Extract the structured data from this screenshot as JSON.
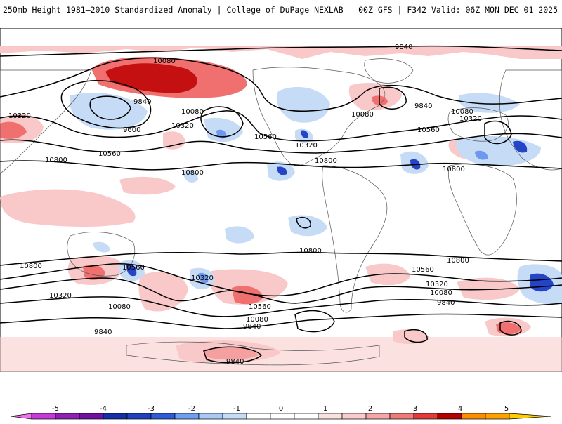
{
  "header": {
    "title_left": "250mb Height 1981–2010 Standardized Anomaly | College of DuPage NEXLAB",
    "title_right": "00Z GFS | F342 Valid: 06Z MON DEC 01 2025"
  },
  "map": {
    "projection": "global cylindrical",
    "field": "250mb geopotential height (m)",
    "contour_labels": [
      {
        "label": "9840",
        "region": "north-pacific-top"
      },
      {
        "label": "9840",
        "region": "north-atlantic"
      },
      {
        "label": "9840",
        "region": "north-pacific-low"
      },
      {
        "label": "9600",
        "region": "north-pacific-low-center"
      },
      {
        "label": "10080",
        "region": "alaska"
      },
      {
        "label": "10080",
        "region": "north-pacific"
      },
      {
        "label": "10080",
        "region": "canada"
      },
      {
        "label": "10080",
        "region": "europe"
      },
      {
        "label": "10320",
        "region": "asia-west"
      },
      {
        "label": "10320",
        "region": "north-pacific"
      },
      {
        "label": "10320",
        "region": "usa"
      },
      {
        "label": "10320",
        "region": "europe"
      },
      {
        "label": "10560",
        "region": "asia-west"
      },
      {
        "label": "10560",
        "region": "north-america"
      },
      {
        "label": "10560",
        "region": "north-africa"
      },
      {
        "label": "10800",
        "region": "china"
      },
      {
        "label": "10800",
        "region": "pacific"
      },
      {
        "label": "10800",
        "region": "caribbean"
      },
      {
        "label": "10800",
        "region": "africa"
      },
      {
        "label": "10800",
        "region": "south-pacific"
      },
      {
        "label": "10800",
        "region": "australia-west"
      },
      {
        "label": "10800",
        "region": "south-atlantic"
      },
      {
        "label": "10560",
        "region": "australia"
      },
      {
        "label": "10560",
        "region": "south-pacific"
      },
      {
        "label": "10560",
        "region": "south-indian"
      },
      {
        "label": "10320",
        "region": "south-indian-west"
      },
      {
        "label": "10320",
        "region": "new-zealand"
      },
      {
        "label": "10320",
        "region": "south-indian"
      },
      {
        "label": "10080",
        "region": "southern-ocean-west"
      },
      {
        "label": "10080",
        "region": "drake-passage"
      },
      {
        "label": "10080",
        "region": "southern-ocean-east"
      },
      {
        "label": "9840",
        "region": "southern-ocean-west"
      },
      {
        "label": "9840",
        "region": "southern-ocean-central"
      },
      {
        "label": "9840",
        "region": "southern-ocean-east"
      },
      {
        "label": "9840",
        "region": "antarctica"
      }
    ]
  },
  "colorbar": {
    "ticks": [
      "-5",
      "-4",
      "-3",
      "-2",
      "-1",
      "0",
      "1",
      "2",
      "3",
      "4",
      "5"
    ],
    "colors": [
      "#c33ad6",
      "#8f1fb5",
      "#1330a8",
      "#2f5ad8",
      "#6f9ff0",
      "#c4dcf7",
      "#ffffff",
      "#ffffff",
      "#f8cccc",
      "#f07a7a",
      "#e23a3a",
      "#b30000",
      "#ffa000",
      "#ffcc00"
    ],
    "anomaly_colors": {
      "strong_positive": "#c41010",
      "positive": "#f07070",
      "weak_positive": "#f9c8c8",
      "weak_negative": "#c6dcf6",
      "negative": "#6d98ee",
      "strong_negative": "#2545c8"
    }
  }
}
